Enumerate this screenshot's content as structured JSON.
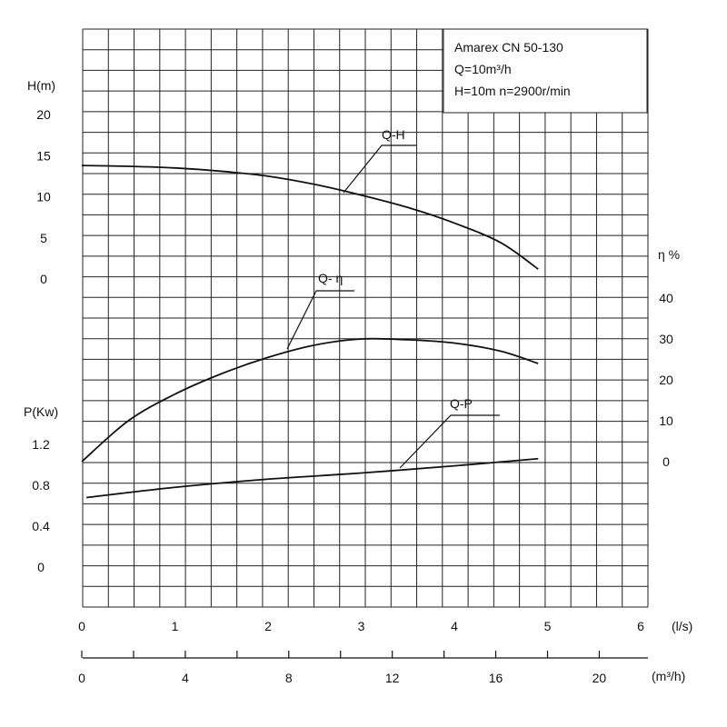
{
  "chart_data": {
    "type": "line",
    "info_box": [
      "Amarex CN 50-130",
      "Q=10m³/h",
      "H=10m  n=2900r/min"
    ],
    "axes": {
      "x_ls": {
        "unit": "(l/s)",
        "ticks": [
          "0",
          "1",
          "2",
          "3",
          "4",
          "5",
          "6"
        ],
        "range": [
          0,
          6
        ]
      },
      "x_m3h": {
        "unit": "(m³/h)",
        "ticks": [
          "0",
          "4",
          "8",
          "12",
          "16",
          "20"
        ],
        "range": [
          0,
          21.6
        ]
      },
      "head": {
        "label": "H(m)",
        "ticks": [
          "20",
          "15",
          "10",
          "5",
          "0"
        ],
        "range": [
          0,
          20
        ]
      },
      "efficiency": {
        "label": "η %",
        "ticks": [
          "40",
          "30",
          "20",
          "10",
          "0"
        ],
        "range": [
          0,
          40
        ]
      },
      "power": {
        "label": "P(Kw)",
        "ticks": [
          "1.2",
          "0.8",
          "0.4",
          "0"
        ],
        "range": [
          0,
          1.2
        ]
      }
    },
    "grid": true,
    "series": [
      {
        "name": "Q-H",
        "axis": "head",
        "x": [
          0,
          0.5,
          1.0,
          1.5,
          2.0,
          2.5,
          3.0,
          3.5,
          4.0,
          4.5,
          4.9
        ],
        "y": [
          13.8,
          13.7,
          13.5,
          13.1,
          12.5,
          11.5,
          10.2,
          8.7,
          6.8,
          4.4,
          1.2
        ]
      },
      {
        "name": "Q- η",
        "axis": "efficiency",
        "x": [
          0,
          0.5,
          1.0,
          1.5,
          2.0,
          2.5,
          3.0,
          3.5,
          4.0,
          4.5,
          4.9
        ],
        "y": [
          0,
          10,
          16.5,
          21.5,
          25.5,
          28.5,
          30,
          29.8,
          29,
          27,
          24
        ]
      },
      {
        "name": "Q-P",
        "axis": "power",
        "x": [
          0.05,
          1.0,
          2.0,
          3.0,
          4.0,
          4.9
        ],
        "y": [
          0.68,
          0.78,
          0.86,
          0.92,
          0.99,
          1.06
        ]
      }
    ]
  }
}
